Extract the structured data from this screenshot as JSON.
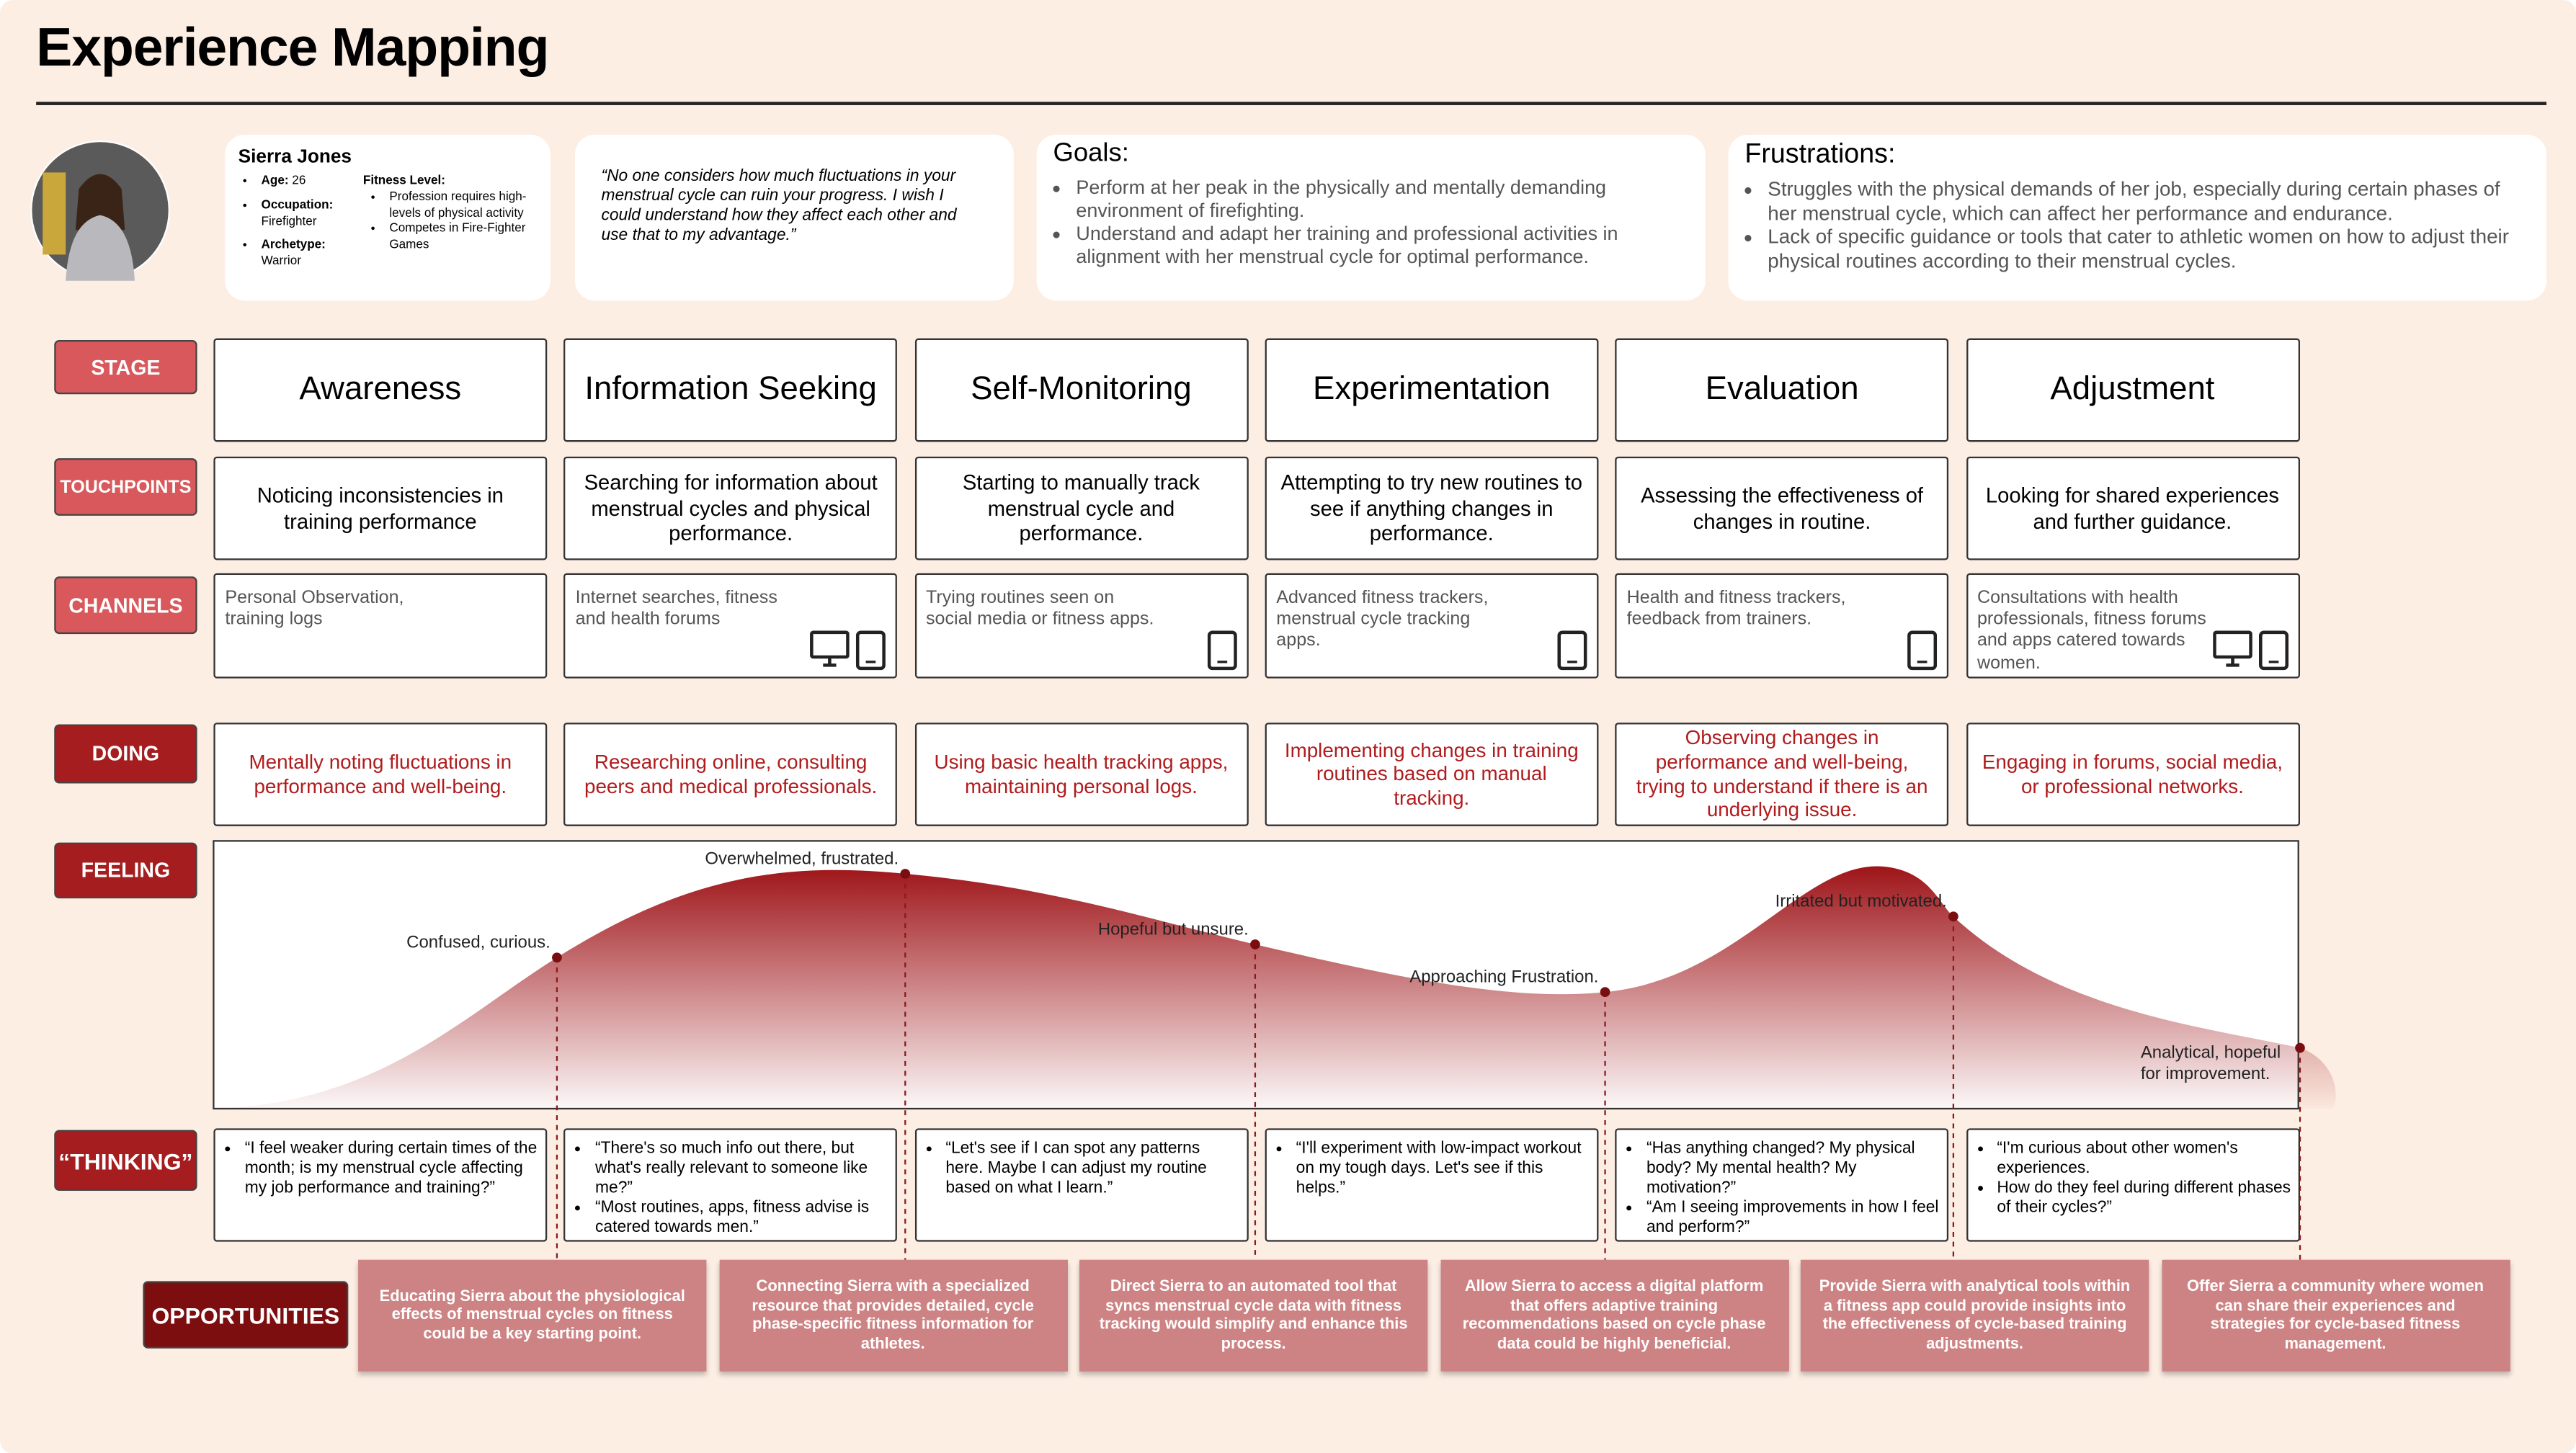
{
  "header": {
    "title": "Experience Mapping"
  },
  "persona": {
    "name": "Sierra Jones",
    "details": [
      {
        "label": "Age:",
        "value": "26"
      },
      {
        "label": "Occupation:",
        "value": "Firefighter"
      },
      {
        "label": "Archetype:",
        "value": "Warrior"
      }
    ],
    "fitness": {
      "label": "Fitness Level:",
      "items": [
        "Profession requires high-levels of physical activity",
        "Competes in Fire-Fighter Games"
      ]
    }
  },
  "quote": "“No one considers how much fluctuations in your menstrual cycle can ruin your progress. I wish I could understand how they affect each other and use that to my advantage.”",
  "goals": {
    "title": "Goals:",
    "items": [
      "Perform at her peak in the physically and mentally demanding environment of firefighting.",
      "Understand and adapt her training and professional activities in alignment with her menstrual cycle for optimal performance."
    ]
  },
  "frustrations": {
    "title": "Frustrations:",
    "items": [
      "Struggles with the physical demands of her job, especially during certain phases of her menstrual cycle, which can affect her performance and endurance.",
      "Lack of specific guidance or tools that cater to athletic women on how to adjust their physical routines according to their menstrual cycles."
    ]
  },
  "row_labels": {
    "stage": "STAGE",
    "touchpoints": "TOUCHPOINTS",
    "channels": "CHANNELS",
    "doing": "DOING",
    "feeling": "FEELING",
    "thinking": "“THINKING”",
    "opportunities": "OPPORTUNITIES"
  },
  "stages": [
    {
      "name": "Awareness",
      "touchpoint": "Noticing inconsistencies in training performance",
      "channel": "Personal Observation, training logs",
      "doing": "Mentally noting fluctuations in performance and well-being.",
      "feeling": "Confused, curious.",
      "thinking": [
        "“I feel weaker during certain times of the month; is my menstrual cycle affecting my job performance and training?”"
      ]
    },
    {
      "name": "Information Seeking",
      "touchpoint": "Searching for information about menstrual cycles and physical performance.",
      "channel": "Internet searches, fitness and health forums",
      "doing": "Researching online, consulting peers and medical professionals.",
      "feeling": "Overwhelmed, frustrated.",
      "thinking": [
        "“There's so much info out there, but what's really relevant to someone like me?”",
        "“Most routines, apps, fitness advise is catered towards men.”"
      ]
    },
    {
      "name": "Self-Monitoring",
      "touchpoint": "Starting to manually track menstrual cycle and performance.",
      "channel": "Trying routines seen on social media or fitness apps.",
      "doing": "Using basic health tracking apps, maintaining personal logs.",
      "feeling": "Hopeful but unsure.",
      "thinking": [
        "“Let's see if I can spot any patterns here. Maybe I can adjust my routine based on what I learn.”"
      ]
    },
    {
      "name": "Experimentation",
      "touchpoint": "Attempting to try new routines to see if anything changes in performance.",
      "channel": "Advanced fitness trackers, menstrual cycle tracking apps.",
      "doing": "Implementing changes in training routines based on manual tracking.",
      "feeling": "Approaching Frustration.",
      "thinking": [
        "“I'll experiment with low-impact workout on my tough days. Let's see if this helps.”"
      ]
    },
    {
      "name": "Evaluation",
      "touchpoint": "Assessing the effectiveness of changes in routine.",
      "channel": "Health and fitness trackers, feedback from trainers.",
      "doing": "Observing changes in performance and well-being, trying to understand if there is an underlying issue.",
      "feeling": "Irritated but motivated.",
      "thinking": [
        "“Has anything changed? My physical body? My mental health? My motivation?”",
        "“Am I seeing improvements in how I feel and perform?”"
      ]
    },
    {
      "name": "Adjustment",
      "touchpoint": "Looking for shared experiences and further guidance.",
      "channel": "Consultations with health professionals, fitness forums and apps catered towards women.",
      "doing": "Engaging in forums, social media, or professional networks.",
      "feeling": "Analytical, hopeful for improvement.",
      "thinking": [
        "“I'm curious about other women's experiences.",
        "How do they feel during different phases of their cycles?”"
      ]
    }
  ],
  "opportunities": [
    "Educating Sierra about the physiological effects of menstrual cycles on fitness could be a key starting point.",
    "Connecting Sierra with a specialized resource that provides detailed, cycle phase-specific fitness information for athletes.",
    "Direct Sierra to an automated tool that syncs menstrual cycle data with fitness tracking would simplify and enhance this process.",
    "Allow Sierra to access a digital platform that offers adaptive training recommendations based on cycle phase data could be highly beneficial.",
    "Provide Sierra with analytical tools within a fitness app could provide insights into the effectiveness of cycle-based training adjustments.",
    "Offer Sierra a community where women can share their experiences and strategies for cycle-based fitness management."
  ]
}
